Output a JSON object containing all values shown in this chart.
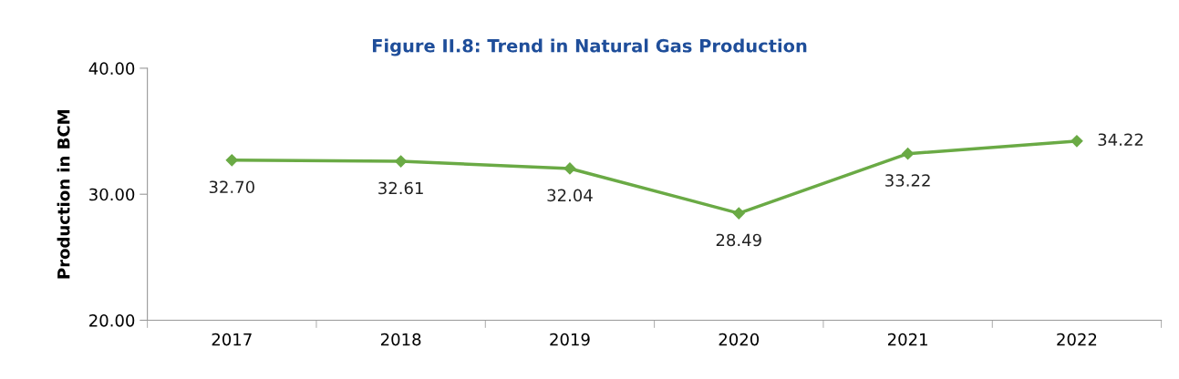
{
  "chart_data": {
    "type": "line",
    "title": "Figure II.8: Trend in Natural Gas Production",
    "ylabel": "Production in BCM",
    "categories": [
      "2017",
      "2018",
      "2019",
      "2020",
      "2021",
      "2022"
    ],
    "series": [
      {
        "color": "#6aaa45",
        "values": [
          32.7,
          32.61,
          32.04,
          28.49,
          33.22,
          34.22
        ],
        "value_labels": [
          "32.70",
          "32.61",
          "32.04",
          "28.49",
          "33.22",
          "34.22"
        ]
      }
    ],
    "ylim": [
      20,
      40
    ],
    "yticks": [
      {
        "value": 20,
        "label": "20.00"
      },
      {
        "value": 30,
        "label": "30.00"
      },
      {
        "value": 40,
        "label": "40.00"
      }
    ],
    "grid": false,
    "legend": false,
    "marker": "diamond",
    "line_style": "solid"
  }
}
